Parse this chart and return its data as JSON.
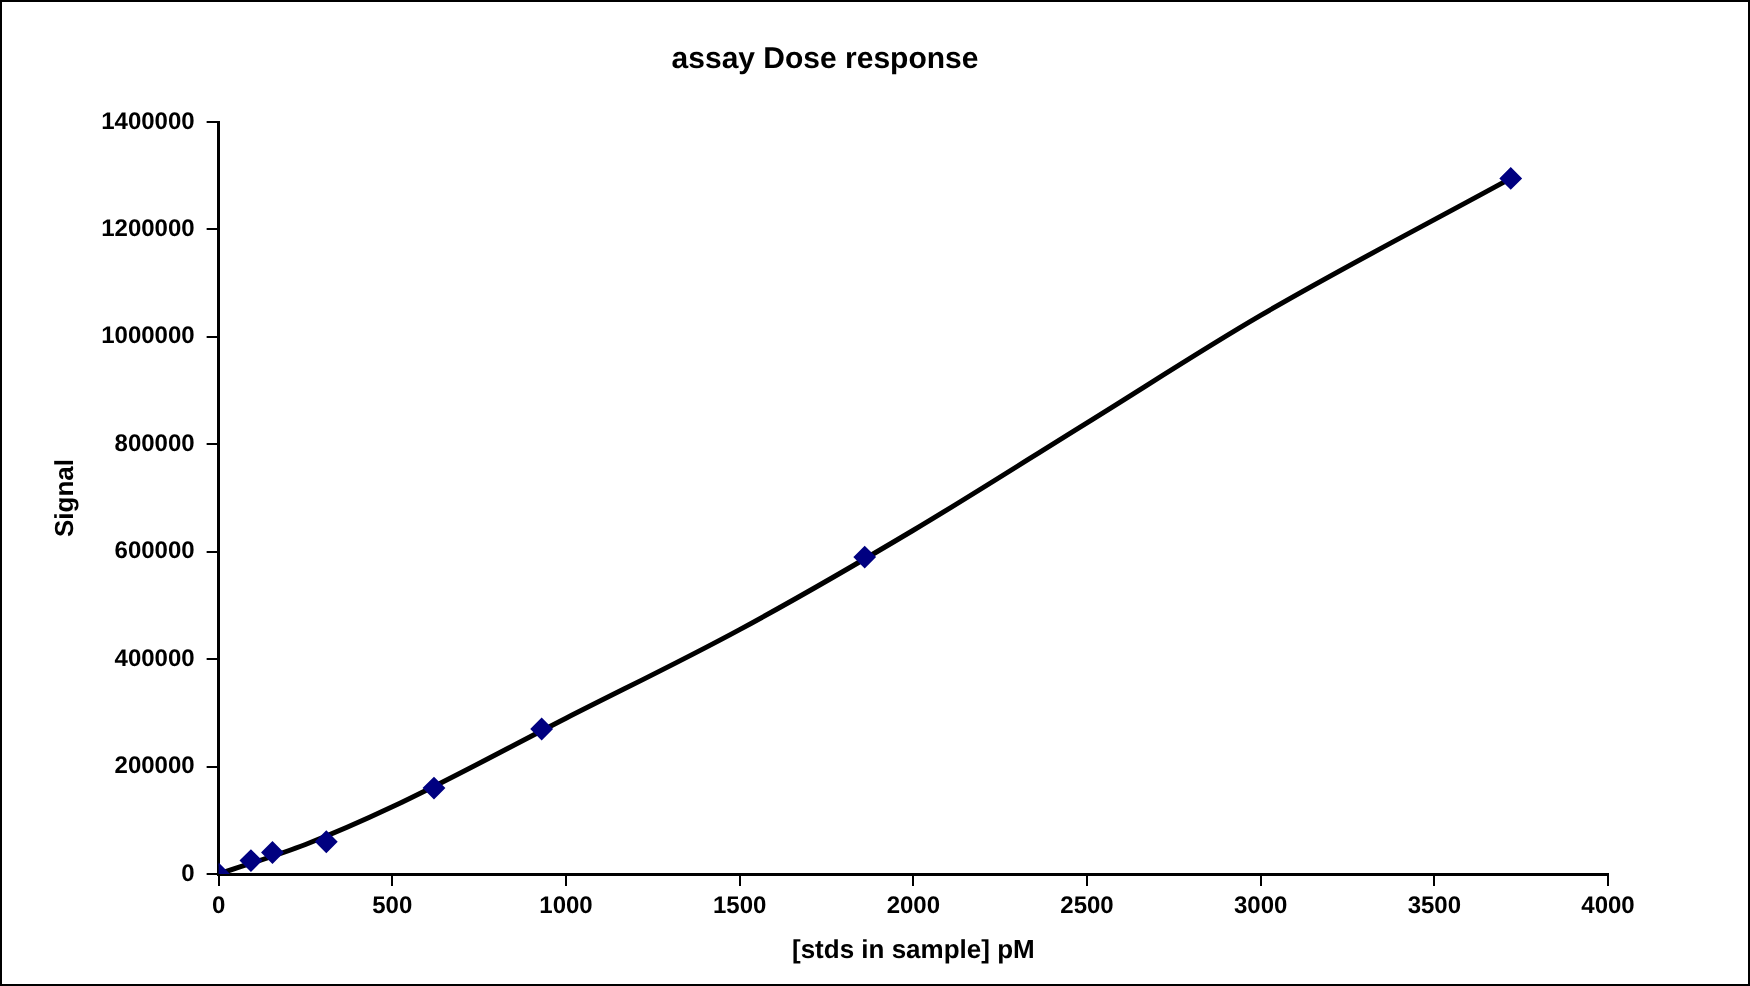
{
  "chart_data": {
    "type": "scatter",
    "title": "assay Dose response",
    "xlabel": "[stds in sample] pM",
    "ylabel": "Signal",
    "xlim": [
      0,
      4000
    ],
    "xticks": [
      0,
      500,
      1000,
      1500,
      2000,
      2500,
      3000,
      3500,
      4000
    ],
    "ylim": [
      0,
      1400000
    ],
    "yticks": [
      0,
      200000,
      400000,
      600000,
      800000,
      1000000,
      1200000,
      1400000
    ],
    "grid": false,
    "legend": false,
    "marker": "diamond",
    "series": [
      {
        "color": "#000080",
        "x": [
          0,
          93,
          155,
          310,
          620,
          930,
          1860,
          3720
        ],
        "values": [
          0,
          25000,
          40000,
          60000,
          160000,
          270000,
          590000,
          1295000
        ]
      },
      {
        "type": "line",
        "color": "#000000",
        "marker": "none",
        "x": [
          0,
          250,
          500,
          1000,
          1500,
          2000,
          2500,
          3000,
          3720
        ],
        "values": [
          0,
          55000,
          125000,
          290000,
          455000,
          640000,
          840000,
          1040000,
          1295000
        ]
      }
    ]
  }
}
